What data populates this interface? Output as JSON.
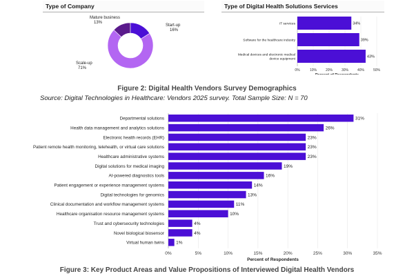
{
  "chart_data": [
    {
      "type": "pie",
      "title": "Type of Company",
      "donut": true,
      "slices": [
        {
          "label": "Mature business",
          "value": 13,
          "color": "#5a1a8c"
        },
        {
          "label": "Start-up",
          "value": 16,
          "color": "#4b0fd6"
        },
        {
          "label": "Scale-up",
          "value": 71,
          "color": "#b366f2"
        }
      ],
      "value_suffix": "%"
    },
    {
      "type": "bar",
      "orientation": "horizontal",
      "title": "Type of Digital Health Solutions Services",
      "categories": [
        "IT services",
        "Software for the healthcare industry",
        "Medical devices and electronic medical device equipment"
      ],
      "values": [
        34,
        39,
        43
      ],
      "xlabel": "Percent of Respondents",
      "ylabel": "",
      "xlim": [
        0,
        50
      ],
      "xticks": [
        "0%",
        "10%",
        "20%",
        "30%",
        "40%",
        "50%"
      ],
      "bar_color": "#4b0fd6",
      "value_suffix": "%"
    },
    {
      "type": "bar",
      "orientation": "horizontal",
      "title": "",
      "categories": [
        "Departmental solutions",
        "Health data management and analytics solutions",
        "Electronic health records (EHR)",
        "Patient remote health monitoring, telehealth, or virtual care solutions",
        "Healthcare administrative systems",
        "Digital solutions for medical imaging",
        "AI-powered diagnostics tools",
        "Patient engagement or experience management systems",
        "Digital technologies for genomics",
        "Clinical documentation and workflow management systems",
        "Healthcare organisation resource management systems",
        "Trust and cybersecurity technologies",
        "Novel biological biosensor",
        "Virtual human twins"
      ],
      "values": [
        31,
        26,
        23,
        23,
        23,
        19,
        16,
        14,
        13,
        11,
        10,
        4,
        4,
        1
      ],
      "xlabel": "Percent of Respondents",
      "ylabel": "",
      "xlim": [
        0,
        35
      ],
      "xticks": [
        "0%",
        "5%",
        "10%",
        "15%",
        "20%",
        "25%",
        "30%",
        "35%"
      ],
      "bar_color": "#4b0fd6",
      "value_suffix": "%"
    }
  ],
  "captions": {
    "figure2": "Figure 2: Digital Health Vendors Survey Demographics",
    "source": "Source: Digital Technologies in Healthcare: Vendors 2025 survey. Total Sample Size: N = 70",
    "figure3": "Figure 3: Key Product Areas and Value Propositions of Interviewed Digital Health Vendors"
  }
}
